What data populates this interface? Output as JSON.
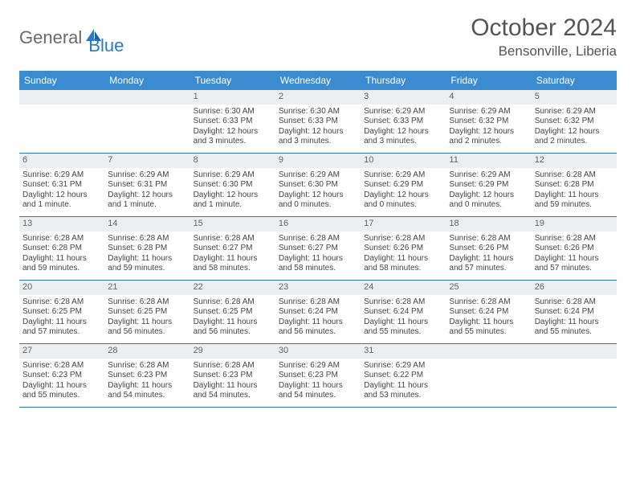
{
  "logo": {
    "text1": "General",
    "text2": "Blue"
  },
  "title": "October 2024",
  "location": "Bensonville, Liberia",
  "day_headers": [
    "Sunday",
    "Monday",
    "Tuesday",
    "Wednesday",
    "Thursday",
    "Friday",
    "Saturday"
  ],
  "colors": {
    "header_bg": "#3a8bcf",
    "header_text": "#ffffff",
    "daynum_bg": "#eceeef",
    "row_border": "#2a7ac3",
    "logo_gray": "#6a6a6a",
    "logo_blue": "#2a7ac3"
  },
  "weeks": [
    [
      {
        "n": "",
        "sr": "",
        "ss": "",
        "dl": ""
      },
      {
        "n": "",
        "sr": "",
        "ss": "",
        "dl": ""
      },
      {
        "n": "1",
        "sr": "Sunrise: 6:30 AM",
        "ss": "Sunset: 6:33 PM",
        "dl": "Daylight: 12 hours and 3 minutes."
      },
      {
        "n": "2",
        "sr": "Sunrise: 6:30 AM",
        "ss": "Sunset: 6:33 PM",
        "dl": "Daylight: 12 hours and 3 minutes."
      },
      {
        "n": "3",
        "sr": "Sunrise: 6:29 AM",
        "ss": "Sunset: 6:33 PM",
        "dl": "Daylight: 12 hours and 3 minutes."
      },
      {
        "n": "4",
        "sr": "Sunrise: 6:29 AM",
        "ss": "Sunset: 6:32 PM",
        "dl": "Daylight: 12 hours and 2 minutes."
      },
      {
        "n": "5",
        "sr": "Sunrise: 6:29 AM",
        "ss": "Sunset: 6:32 PM",
        "dl": "Daylight: 12 hours and 2 minutes."
      }
    ],
    [
      {
        "n": "6",
        "sr": "Sunrise: 6:29 AM",
        "ss": "Sunset: 6:31 PM",
        "dl": "Daylight: 12 hours and 1 minute."
      },
      {
        "n": "7",
        "sr": "Sunrise: 6:29 AM",
        "ss": "Sunset: 6:31 PM",
        "dl": "Daylight: 12 hours and 1 minute."
      },
      {
        "n": "8",
        "sr": "Sunrise: 6:29 AM",
        "ss": "Sunset: 6:30 PM",
        "dl": "Daylight: 12 hours and 1 minute."
      },
      {
        "n": "9",
        "sr": "Sunrise: 6:29 AM",
        "ss": "Sunset: 6:30 PM",
        "dl": "Daylight: 12 hours and 0 minutes."
      },
      {
        "n": "10",
        "sr": "Sunrise: 6:29 AM",
        "ss": "Sunset: 6:29 PM",
        "dl": "Daylight: 12 hours and 0 minutes."
      },
      {
        "n": "11",
        "sr": "Sunrise: 6:29 AM",
        "ss": "Sunset: 6:29 PM",
        "dl": "Daylight: 12 hours and 0 minutes."
      },
      {
        "n": "12",
        "sr": "Sunrise: 6:28 AM",
        "ss": "Sunset: 6:28 PM",
        "dl": "Daylight: 11 hours and 59 minutes."
      }
    ],
    [
      {
        "n": "13",
        "sr": "Sunrise: 6:28 AM",
        "ss": "Sunset: 6:28 PM",
        "dl": "Daylight: 11 hours and 59 minutes."
      },
      {
        "n": "14",
        "sr": "Sunrise: 6:28 AM",
        "ss": "Sunset: 6:28 PM",
        "dl": "Daylight: 11 hours and 59 minutes."
      },
      {
        "n": "15",
        "sr": "Sunrise: 6:28 AM",
        "ss": "Sunset: 6:27 PM",
        "dl": "Daylight: 11 hours and 58 minutes."
      },
      {
        "n": "16",
        "sr": "Sunrise: 6:28 AM",
        "ss": "Sunset: 6:27 PM",
        "dl": "Daylight: 11 hours and 58 minutes."
      },
      {
        "n": "17",
        "sr": "Sunrise: 6:28 AM",
        "ss": "Sunset: 6:26 PM",
        "dl": "Daylight: 11 hours and 58 minutes."
      },
      {
        "n": "18",
        "sr": "Sunrise: 6:28 AM",
        "ss": "Sunset: 6:26 PM",
        "dl": "Daylight: 11 hours and 57 minutes."
      },
      {
        "n": "19",
        "sr": "Sunrise: 6:28 AM",
        "ss": "Sunset: 6:26 PM",
        "dl": "Daylight: 11 hours and 57 minutes."
      }
    ],
    [
      {
        "n": "20",
        "sr": "Sunrise: 6:28 AM",
        "ss": "Sunset: 6:25 PM",
        "dl": "Daylight: 11 hours and 57 minutes."
      },
      {
        "n": "21",
        "sr": "Sunrise: 6:28 AM",
        "ss": "Sunset: 6:25 PM",
        "dl": "Daylight: 11 hours and 56 minutes."
      },
      {
        "n": "22",
        "sr": "Sunrise: 6:28 AM",
        "ss": "Sunset: 6:25 PM",
        "dl": "Daylight: 11 hours and 56 minutes."
      },
      {
        "n": "23",
        "sr": "Sunrise: 6:28 AM",
        "ss": "Sunset: 6:24 PM",
        "dl": "Daylight: 11 hours and 56 minutes."
      },
      {
        "n": "24",
        "sr": "Sunrise: 6:28 AM",
        "ss": "Sunset: 6:24 PM",
        "dl": "Daylight: 11 hours and 55 minutes."
      },
      {
        "n": "25",
        "sr": "Sunrise: 6:28 AM",
        "ss": "Sunset: 6:24 PM",
        "dl": "Daylight: 11 hours and 55 minutes."
      },
      {
        "n": "26",
        "sr": "Sunrise: 6:28 AM",
        "ss": "Sunset: 6:24 PM",
        "dl": "Daylight: 11 hours and 55 minutes."
      }
    ],
    [
      {
        "n": "27",
        "sr": "Sunrise: 6:28 AM",
        "ss": "Sunset: 6:23 PM",
        "dl": "Daylight: 11 hours and 55 minutes."
      },
      {
        "n": "28",
        "sr": "Sunrise: 6:28 AM",
        "ss": "Sunset: 6:23 PM",
        "dl": "Daylight: 11 hours and 54 minutes."
      },
      {
        "n": "29",
        "sr": "Sunrise: 6:28 AM",
        "ss": "Sunset: 6:23 PM",
        "dl": "Daylight: 11 hours and 54 minutes."
      },
      {
        "n": "30",
        "sr": "Sunrise: 6:29 AM",
        "ss": "Sunset: 6:23 PM",
        "dl": "Daylight: 11 hours and 54 minutes."
      },
      {
        "n": "31",
        "sr": "Sunrise: 6:29 AM",
        "ss": "Sunset: 6:22 PM",
        "dl": "Daylight: 11 hours and 53 minutes."
      },
      {
        "n": "",
        "sr": "",
        "ss": "",
        "dl": ""
      },
      {
        "n": "",
        "sr": "",
        "ss": "",
        "dl": ""
      }
    ]
  ]
}
